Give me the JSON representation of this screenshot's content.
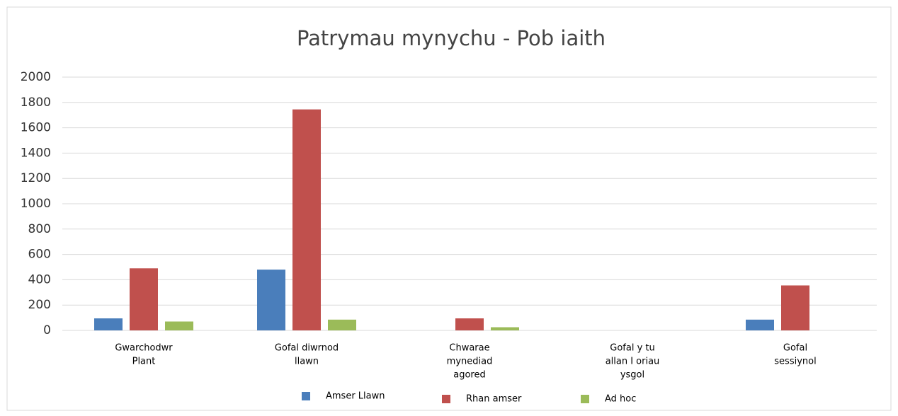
{
  "chart_data": {
    "type": "bar",
    "title": "Patrymau mynychu - Pob iaith",
    "categories": [
      [
        "Gwarchodwr",
        "Plant"
      ],
      [
        "Gofal diwrnod",
        "llawn"
      ],
      [
        "Chwarae",
        "mynediad",
        "agored"
      ],
      [
        "Gofal y tu",
        "allan I oriau",
        "ysgol"
      ],
      [
        "Gofal",
        "sessiynol"
      ]
    ],
    "series": [
      {
        "name": "Amser Llawn",
        "color": "#4a7ebb",
        "values": [
          95,
          480,
          0,
          0,
          85
        ]
      },
      {
        "name": "Rhan amser",
        "color": "#c0504d",
        "values": [
          490,
          1745,
          95,
          0,
          355
        ]
      },
      {
        "name": "Ad hoc",
        "color": "#9bbb59",
        "values": [
          70,
          85,
          25,
          0,
          0
        ]
      }
    ],
    "ylim": [
      0,
      2000
    ],
    "yticks": [
      0,
      200,
      400,
      600,
      800,
      1000,
      1200,
      1400,
      1600,
      1800,
      2000
    ],
    "grid": true
  }
}
